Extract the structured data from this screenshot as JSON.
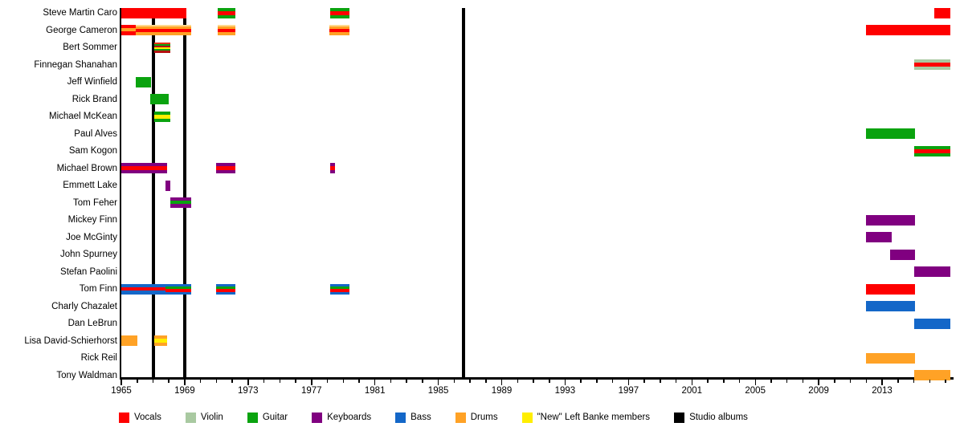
{
  "chart_data": {
    "type": "timeline",
    "description": "Band members timeline, roles shown as colored stripes per year range",
    "axis": {
      "start_year": 1965,
      "end_year": 2017.5,
      "major_tick_years": [
        1965,
        1969,
        1973,
        1977,
        1981,
        1985,
        1989,
        1993,
        1997,
        2001,
        2005,
        2009,
        2013
      ],
      "major_tick_labels": [
        "1965",
        "1969",
        "1973",
        "1977",
        "1981",
        "1985",
        "1989",
        "1993",
        "1997",
        "2001",
        "2005",
        "2009",
        "2013"
      ],
      "minor_ticks_every_year": true
    },
    "colors": {
      "vocals": "#fe0000",
      "violin": "#a9c9a1",
      "guitar": "#0aa30f",
      "keyboards": "#800080",
      "bass": "#1467c8",
      "drums": "#ffa226",
      "new": "#ffee00",
      "albums": "#000000",
      "paleorange": "#ffd98e",
      "darkred": "#b41111"
    },
    "album_lines_years": [
      1967.0,
      1969.0,
      1986.6
    ],
    "legend": [
      {
        "label": "Vocals",
        "color_key": "vocals"
      },
      {
        "label": "Violin",
        "color_key": "violin"
      },
      {
        "label": "Guitar",
        "color_key": "guitar"
      },
      {
        "label": "Keyboards",
        "color_key": "keyboards"
      },
      {
        "label": "Bass",
        "color_key": "bass"
      },
      {
        "label": "Drums",
        "color_key": "drums"
      },
      {
        "label": "\"New\" Left Banke members",
        "color_key": "new"
      },
      {
        "label": "Studio albums",
        "color_key": "albums"
      }
    ],
    "members": [
      {
        "name": "Steve Martin Caro",
        "segments": [
          {
            "from": 1965.0,
            "to": 1969.1,
            "roles": [
              "vocals"
            ]
          },
          {
            "from": 1971.1,
            "to": 1972.2,
            "roles": [
              "guitar",
              "vocals",
              "guitar"
            ],
            "weights": [
              4,
              5,
              4
            ]
          },
          {
            "from": 1978.2,
            "to": 1979.4,
            "roles": [
              "guitar",
              "vocals",
              "guitar"
            ],
            "weights": [
              4,
              5,
              4
            ]
          },
          {
            "from": 2016.3,
            "to": 2017.3,
            "roles": [
              "vocals"
            ]
          }
        ]
      },
      {
        "name": "George Cameron",
        "segments": [
          {
            "from": 1965.0,
            "to": 1966.0,
            "roles": [
              "vocals",
              "drums",
              "vocals"
            ],
            "weights": [
              4,
              4,
              5
            ]
          },
          {
            "from": 1965.9,
            "to": 1969.4,
            "roles": [
              "paleorange",
              "drums",
              "vocals",
              "drums"
            ],
            "weights": [
              2,
              3,
              4,
              4
            ]
          },
          {
            "from": 1971.1,
            "to": 1972.2,
            "roles": [
              "paleorange",
              "drums",
              "vocals",
              "drums"
            ],
            "weights": [
              2,
              3,
              4,
              4
            ]
          },
          {
            "from": 1978.1,
            "to": 1979.4,
            "roles": [
              "paleorange",
              "drums",
              "vocals",
              "drums"
            ],
            "weights": [
              2,
              3,
              4,
              4
            ]
          },
          {
            "from": 2012.0,
            "to": 2017.3,
            "roles": [
              "vocals"
            ]
          }
        ]
      },
      {
        "name": "Bert Sommer",
        "segments": [
          {
            "from": 1967.1,
            "to": 1968.1,
            "roles": [
              "#e83010",
              "guitar",
              "darkred",
              "new",
              "guitar",
              "darkred"
            ]
          }
        ]
      },
      {
        "name": "Finnegan Shanahan",
        "segments": [
          {
            "from": 2015.0,
            "to": 2017.3,
            "roles": [
              "violin",
              "vocals",
              "violin"
            ],
            "weights": [
              4,
              5,
              4
            ]
          }
        ]
      },
      {
        "name": "Jeff Winfield",
        "segments": [
          {
            "from": 1965.9,
            "to": 1966.9,
            "roles": [
              "guitar"
            ]
          }
        ]
      },
      {
        "name": "Rick Brand",
        "segments": [
          {
            "from": 1966.8,
            "to": 1968.0,
            "roles": [
              "guitar"
            ]
          }
        ]
      },
      {
        "name": "Michael McKean",
        "segments": [
          {
            "from": 1967.1,
            "to": 1968.1,
            "roles": [
              "guitar",
              "new",
              "guitar"
            ],
            "weights": [
              4,
              5,
              4
            ]
          }
        ]
      },
      {
        "name": "Paul Alves",
        "segments": [
          {
            "from": 2012.0,
            "to": 2015.1,
            "roles": [
              "guitar"
            ]
          }
        ]
      },
      {
        "name": "Sam Kogon",
        "segments": [
          {
            "from": 2015.0,
            "to": 2017.3,
            "roles": [
              "guitar",
              "vocals",
              "guitar"
            ],
            "weights": [
              4,
              5,
              4
            ]
          }
        ]
      },
      {
        "name": "Michael Brown",
        "segments": [
          {
            "from": 1965.0,
            "to": 1967.9,
            "roles": [
              "keyboards",
              "vocals",
              "keyboards"
            ],
            "weights": [
              4,
              5,
              4
            ]
          },
          {
            "from": 1971.0,
            "to": 1972.2,
            "roles": [
              "keyboards",
              "vocals",
              "keyboards"
            ],
            "weights": [
              4,
              5,
              4
            ]
          },
          {
            "from": 1978.2,
            "to": 1978.5,
            "roles": [
              "keyboards",
              "vocals",
              "keyboards"
            ],
            "weights": [
              4,
              5,
              4
            ]
          }
        ]
      },
      {
        "name": "Emmett Lake",
        "segments": [
          {
            "from": 1967.8,
            "to": 1968.1,
            "roles": [
              "keyboards"
            ]
          }
        ]
      },
      {
        "name": "Tom Feher",
        "segments": [
          {
            "from": 1968.1,
            "to": 1969.4,
            "roles": [
              "keyboards",
              "guitar",
              "keyboards"
            ],
            "weights": [
              4,
              4,
              5
            ]
          }
        ]
      },
      {
        "name": "Mickey Finn",
        "segments": [
          {
            "from": 2012.0,
            "to": 2015.1,
            "roles": [
              "keyboards"
            ]
          }
        ]
      },
      {
        "name": "Joe McGinty",
        "segments": [
          {
            "from": 2012.0,
            "to": 2013.6,
            "roles": [
              "keyboards"
            ]
          }
        ]
      },
      {
        "name": "John Spurney",
        "segments": [
          {
            "from": 2013.5,
            "to": 2015.1,
            "roles": [
              "keyboards"
            ]
          }
        ]
      },
      {
        "name": "Stefan Paolini",
        "segments": [
          {
            "from": 2015.0,
            "to": 2017.3,
            "roles": [
              "keyboards"
            ]
          }
        ]
      },
      {
        "name": "Tom Finn",
        "segments": [
          {
            "from": 1965.0,
            "to": 1967.8,
            "roles": [
              "bass",
              "vocals",
              "bass"
            ],
            "weights": [
              4,
              4,
              5
            ]
          },
          {
            "from": 1967.8,
            "to": 1969.4,
            "roles": [
              "bass",
              "guitar",
              "vocals",
              "bass"
            ],
            "weights": [
              3,
              3,
              4,
              3
            ]
          },
          {
            "from": 1971.0,
            "to": 1972.2,
            "roles": [
              "bass",
              "guitar",
              "vocals",
              "bass"
            ],
            "weights": [
              3,
              3,
              4,
              3
            ]
          },
          {
            "from": 1978.2,
            "to": 1979.4,
            "roles": [
              "bass",
              "guitar",
              "vocals",
              "bass"
            ],
            "weights": [
              3,
              3,
              4,
              3
            ]
          },
          {
            "from": 2012.0,
            "to": 2015.1,
            "roles": [
              "vocals"
            ]
          }
        ]
      },
      {
        "name": "Charly Chazalet",
        "segments": [
          {
            "from": 2012.0,
            "to": 2015.1,
            "roles": [
              "bass"
            ]
          }
        ]
      },
      {
        "name": "Dan LeBrun",
        "segments": [
          {
            "from": 2015.0,
            "to": 2017.3,
            "roles": [
              "bass"
            ]
          }
        ]
      },
      {
        "name": "Lisa David-Schierhorst",
        "segments": [
          {
            "from": 1965.0,
            "to": 1966.0,
            "roles": [
              "drums"
            ]
          },
          {
            "from": 1967.1,
            "to": 1967.9,
            "roles": [
              "drums",
              "new",
              "drums"
            ],
            "weights": [
              4,
              5,
              4
            ]
          }
        ]
      },
      {
        "name": "Rick Reil",
        "segments": [
          {
            "from": 2012.0,
            "to": 2015.1,
            "roles": [
              "drums"
            ]
          }
        ]
      },
      {
        "name": "Tony Waldman",
        "segments": [
          {
            "from": 2015.0,
            "to": 2017.3,
            "roles": [
              "drums"
            ]
          }
        ]
      }
    ]
  }
}
